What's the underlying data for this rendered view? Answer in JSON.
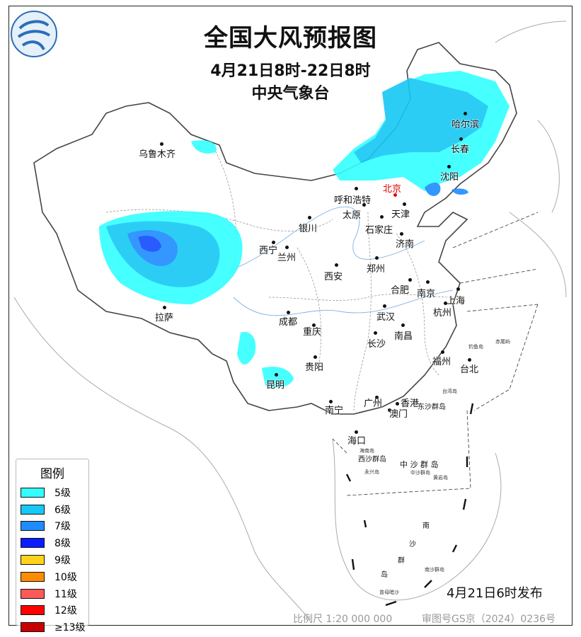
{
  "header": {
    "title": "全国大风预报图",
    "period": "4月21日8时-22日8时",
    "agency": "中央气象台"
  },
  "logo": {
    "icon": "cma-logo-icon",
    "color": "#2a6fb8"
  },
  "cities": [
    "乌鲁木齐",
    "哈尔滨",
    "长春",
    "沈阳",
    "北京",
    "天津",
    "呼和浩特",
    "太原",
    "石家庄",
    "银川",
    "西宁",
    "兰州",
    "济南",
    "郑州",
    "西安",
    "合肥",
    "南京",
    "上海",
    "杭州",
    "武汉",
    "拉萨",
    "成都",
    "重庆",
    "南昌",
    "长沙",
    "贵阳",
    "福州",
    "台北",
    "昆明",
    "广州",
    "香港",
    "澳门",
    "南宁",
    "海口"
  ],
  "capital_color": "#e00000",
  "islands": [
    "钓鱼岛",
    "赤尾屿",
    "台湾岛",
    "东沙群岛",
    "海南岛",
    "西沙群岛",
    "中沙群岛",
    "黄岩岛",
    "永兴岛",
    "南沙群岛",
    "曾母暗沙"
  ],
  "islands_labels": {
    "xisha": "西沙群岛",
    "zhongsha": "中 沙 群 岛",
    "nansha": [
      "南",
      "沙",
      "群",
      "岛"
    ]
  },
  "legend": {
    "title": "图例",
    "items": [
      {
        "label": "5级",
        "color": "#33ffff"
      },
      {
        "label": "6级",
        "color": "#16c8f5"
      },
      {
        "label": "7级",
        "color": "#1e8cff"
      },
      {
        "label": "8级",
        "color": "#0a1eff"
      },
      {
        "label": "9级",
        "color": "#ffd21e"
      },
      {
        "label": "10级",
        "color": "#ff8c00"
      },
      {
        "label": "11级",
        "color": "#ff5a5a"
      },
      {
        "label": "12级",
        "color": "#ff0000"
      },
      {
        "label": "≥13级",
        "color": "#c80000"
      }
    ]
  },
  "footer": {
    "issued": "4月21日6时发布",
    "scale": "比例尺 1:20 000 000",
    "review_no": "审图号GS京（2024）0236号"
  }
}
